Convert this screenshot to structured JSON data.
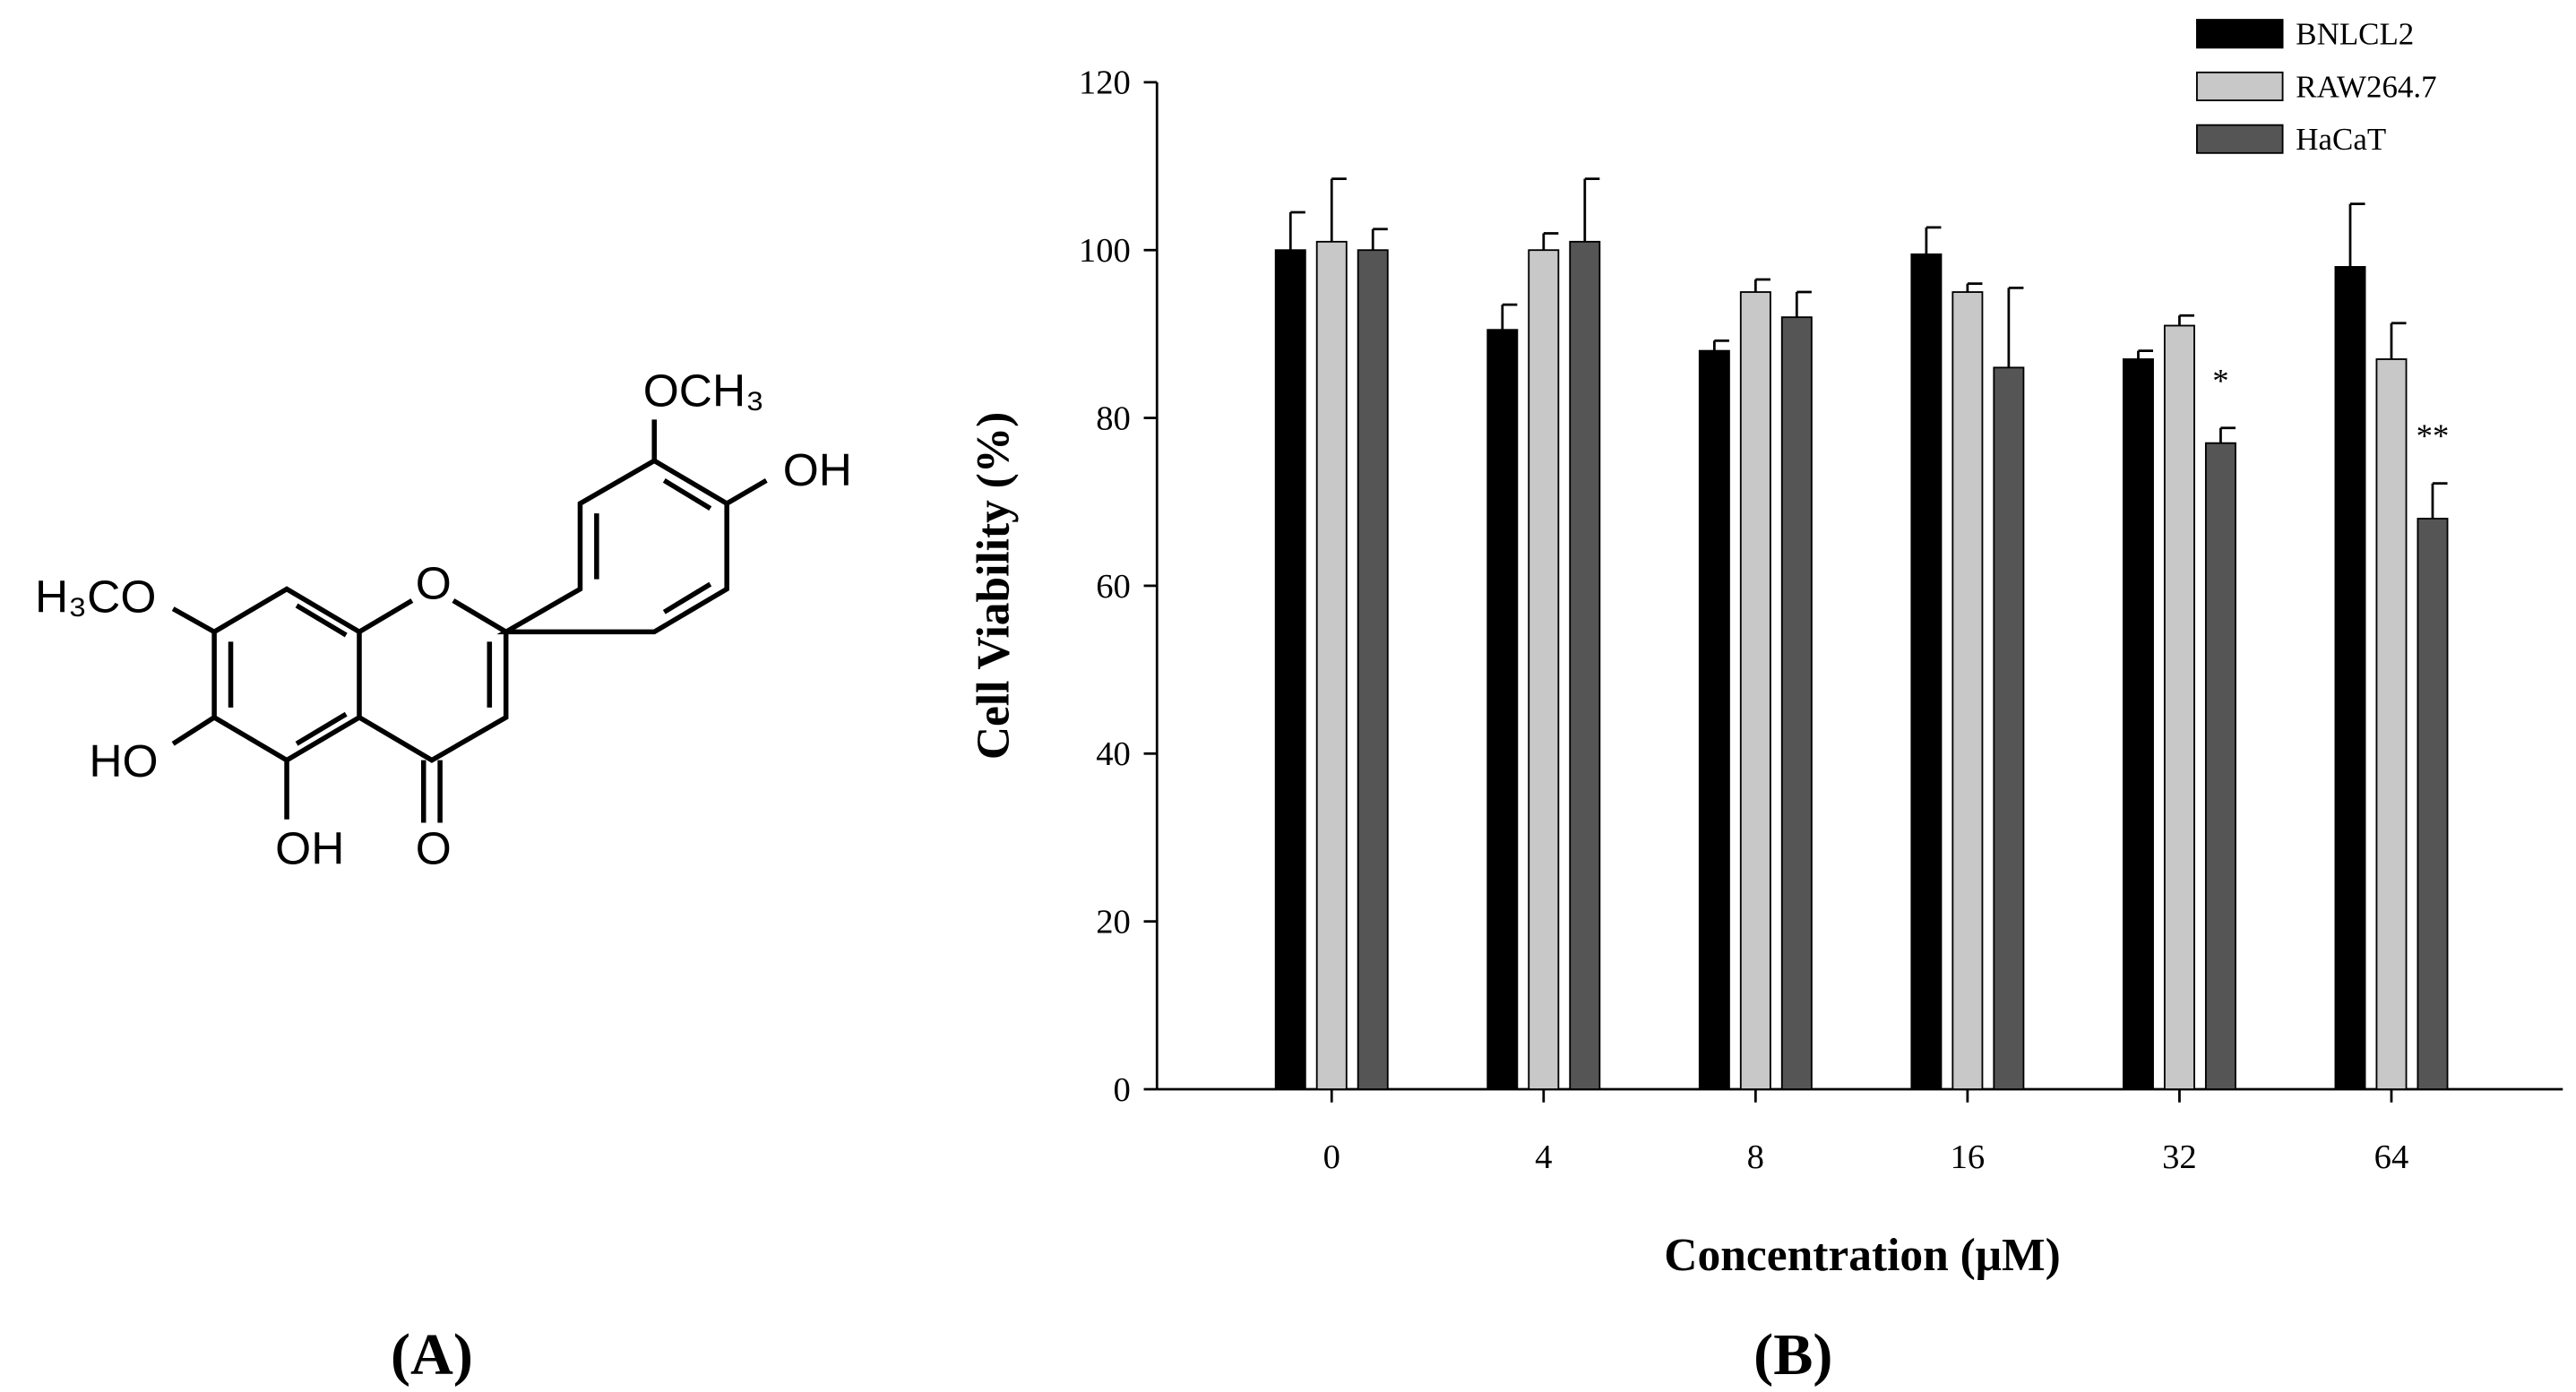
{
  "structure": {
    "labels": [
      "OCH₃",
      "OH",
      "O",
      "H₃CO",
      "HO",
      "OH",
      "O"
    ]
  },
  "panels": [
    "(A)",
    "(B)"
  ],
  "chart_data": {
    "type": "bar",
    "x_label": "Concentration (μM)",
    "y_label": "Cell Viability (%)",
    "categories": [
      "0",
      "4",
      "8",
      "16",
      "32",
      "64"
    ],
    "series": [
      {
        "name": "BNLCL2",
        "color": "#000000",
        "values": [
          100,
          90.5,
          88,
          99.5,
          87,
          98
        ],
        "errors": [
          4.5,
          3,
          1.2,
          3.2,
          1,
          7.5
        ]
      },
      {
        "name": "RAW264.7",
        "color": "#c8c8c8",
        "values": [
          101,
          100,
          95,
          95,
          91,
          87
        ],
        "errors": [
          7.5,
          2,
          1.5,
          1,
          1.2,
          4.3
        ]
      },
      {
        "name": "HaCaT",
        "color": "#555555",
        "values": [
          100,
          101,
          92,
          86,
          77,
          68
        ],
        "errors": [
          2.5,
          7.5,
          3,
          9.5,
          1.8,
          4.2
        ]
      }
    ],
    "annotations": [
      {
        "text": "*",
        "series": 2,
        "category": 4
      },
      {
        "text": "**",
        "series": 2,
        "category": 5
      }
    ],
    "ylim": [
      0,
      120
    ],
    "yticks": [
      0,
      20,
      40,
      60,
      80,
      100,
      120
    ],
    "grid": false,
    "legend": "top-right"
  }
}
